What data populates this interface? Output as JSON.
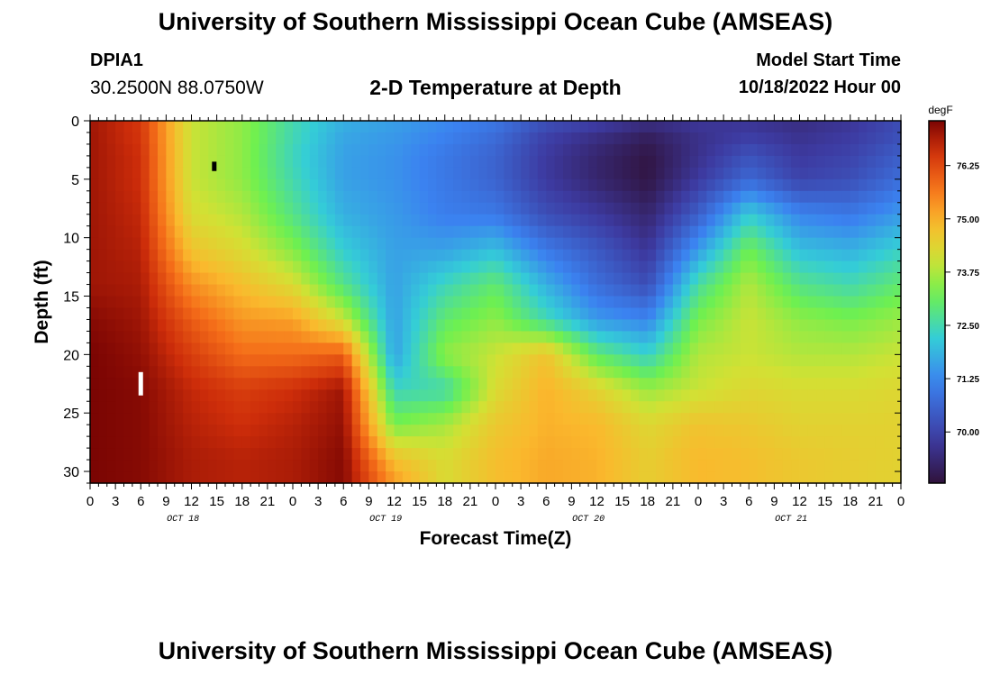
{
  "header": {
    "title": "University of Southern Mississippi Ocean Cube (AMSEAS)",
    "station_id": "DPIA1",
    "station_coords": "30.2500N  88.0750W",
    "plot_title": "2-D Temperature at Depth",
    "model_start_label": "Model Start Time",
    "model_start_value": "10/18/2022 Hour 00"
  },
  "footer": {
    "title": "University of Southern Mississippi Ocean Cube (AMSEAS)"
  },
  "chart_data": {
    "type": "heatmap",
    "title": "2-D Temperature at Depth",
    "xlabel": "Forecast Time(Z)",
    "ylabel": "Depth (ft)",
    "x_range_hours": [
      0,
      96
    ],
    "y_range_ft": [
      0,
      31
    ],
    "y_inverted": true,
    "x_tick_labels": [
      "0",
      "3",
      "6",
      "9",
      "12",
      "15",
      "18",
      "21",
      "0",
      "3",
      "6",
      "9",
      "12",
      "15",
      "18",
      "21",
      "0",
      "3",
      "6",
      "9",
      "12",
      "15",
      "18",
      "21",
      "0",
      "3",
      "6",
      "9",
      "12",
      "15",
      "18",
      "21",
      "0"
    ],
    "day_labels": [
      {
        "label": "OCT 18",
        "hour": 11
      },
      {
        "label": "OCT 19",
        "hour": 35
      },
      {
        "label": "OCT 20",
        "hour": 59
      },
      {
        "label": "OCT 21",
        "hour": 83
      }
    ],
    "y_ticks": [
      0,
      5,
      10,
      15,
      20,
      25,
      30
    ],
    "colorbar": {
      "units": "degF",
      "ticks": [
        "76.25",
        "75.00",
        "73.75",
        "72.50",
        "71.25",
        "70.00"
      ],
      "range": [
        68.8,
        77.3
      ]
    },
    "depth_levels_ft": [
      0,
      1,
      3,
      5,
      8,
      11,
      14,
      17,
      20,
      23,
      26,
      29,
      31
    ],
    "times_hours": [
      0,
      6,
      12,
      18,
      24,
      30,
      36,
      42,
      48,
      54,
      60,
      66,
      72,
      78,
      84,
      90,
      96
    ],
    "values": [
      [
        77.0,
        76.5,
        74.0,
        73.5,
        72.5,
        71.8,
        71.6,
        71.3,
        71.0,
        70.3,
        70.0,
        69.6,
        69.8,
        69.7,
        69.5,
        69.7,
        70.2
      ],
      [
        77.0,
        76.5,
        74.0,
        73.5,
        72.5,
        71.7,
        71.5,
        71.2,
        70.8,
        70.0,
        69.6,
        69.2,
        69.6,
        69.8,
        69.6,
        69.8,
        70.2
      ],
      [
        77.0,
        76.6,
        74.0,
        73.5,
        72.4,
        71.6,
        71.4,
        71.0,
        70.6,
        69.8,
        69.3,
        68.9,
        69.6,
        70.3,
        69.8,
        70.0,
        70.5
      ],
      [
        77.0,
        76.6,
        74.0,
        73.5,
        72.5,
        71.6,
        71.4,
        71.0,
        70.6,
        69.8,
        69.3,
        68.9,
        69.8,
        70.7,
        70.0,
        70.2,
        70.8
      ],
      [
        77.0,
        76.7,
        74.2,
        73.8,
        72.8,
        71.8,
        71.5,
        71.1,
        71.0,
        70.2,
        69.8,
        69.3,
        70.5,
        72.2,
        71.2,
        71.0,
        71.5
      ],
      [
        77.0,
        76.8,
        74.7,
        74.2,
        73.4,
        72.2,
        71.6,
        71.6,
        72.0,
        71.0,
        70.4,
        69.7,
        71.5,
        73.2,
        72.0,
        71.8,
        72.3
      ],
      [
        77.0,
        76.9,
        75.4,
        74.8,
        74.2,
        72.8,
        71.6,
        72.4,
        73.0,
        71.8,
        70.8,
        70.2,
        72.6,
        73.8,
        72.8,
        72.5,
        73.0
      ],
      [
        77.2,
        77.0,
        76.0,
        75.3,
        75.2,
        74.0,
        71.6,
        73.0,
        73.5,
        72.5,
        71.5,
        71.2,
        73.3,
        74.0,
        73.5,
        73.3,
        73.6
      ],
      [
        77.3,
        77.1,
        76.4,
        75.8,
        75.8,
        76.0,
        71.6,
        73.5,
        74.0,
        74.7,
        73.0,
        72.3,
        73.8,
        74.0,
        73.8,
        73.8,
        74.0
      ],
      [
        77.3,
        77.2,
        76.7,
        76.4,
        76.6,
        77.0,
        72.4,
        72.5,
        74.2,
        75.0,
        74.4,
        73.6,
        74.0,
        74.3,
        74.2,
        74.2,
        74.3
      ],
      [
        77.3,
        77.2,
        76.8,
        76.6,
        76.8,
        77.1,
        73.3,
        73.7,
        74.6,
        75.0,
        74.9,
        74.3,
        74.7,
        74.6,
        74.4,
        74.4,
        74.4
      ],
      [
        77.3,
        77.2,
        76.9,
        76.8,
        76.9,
        77.2,
        74.8,
        74.2,
        74.8,
        75.1,
        75.0,
        74.5,
        74.9,
        74.8,
        74.6,
        74.5,
        74.4
      ],
      [
        77.3,
        77.2,
        76.9,
        76.8,
        76.9,
        77.2,
        75.3,
        74.2,
        74.8,
        75.1,
        75.0,
        74.5,
        74.9,
        74.8,
        74.6,
        74.5,
        74.4
      ]
    ],
    "markers": [
      {
        "hour": 6,
        "depth_from": 21.5,
        "depth_to": 23.5,
        "color": "#ffffff"
      },
      {
        "hour": 14.7,
        "depth_from": 3.5,
        "depth_to": 4.3,
        "color": "#000000"
      }
    ]
  }
}
